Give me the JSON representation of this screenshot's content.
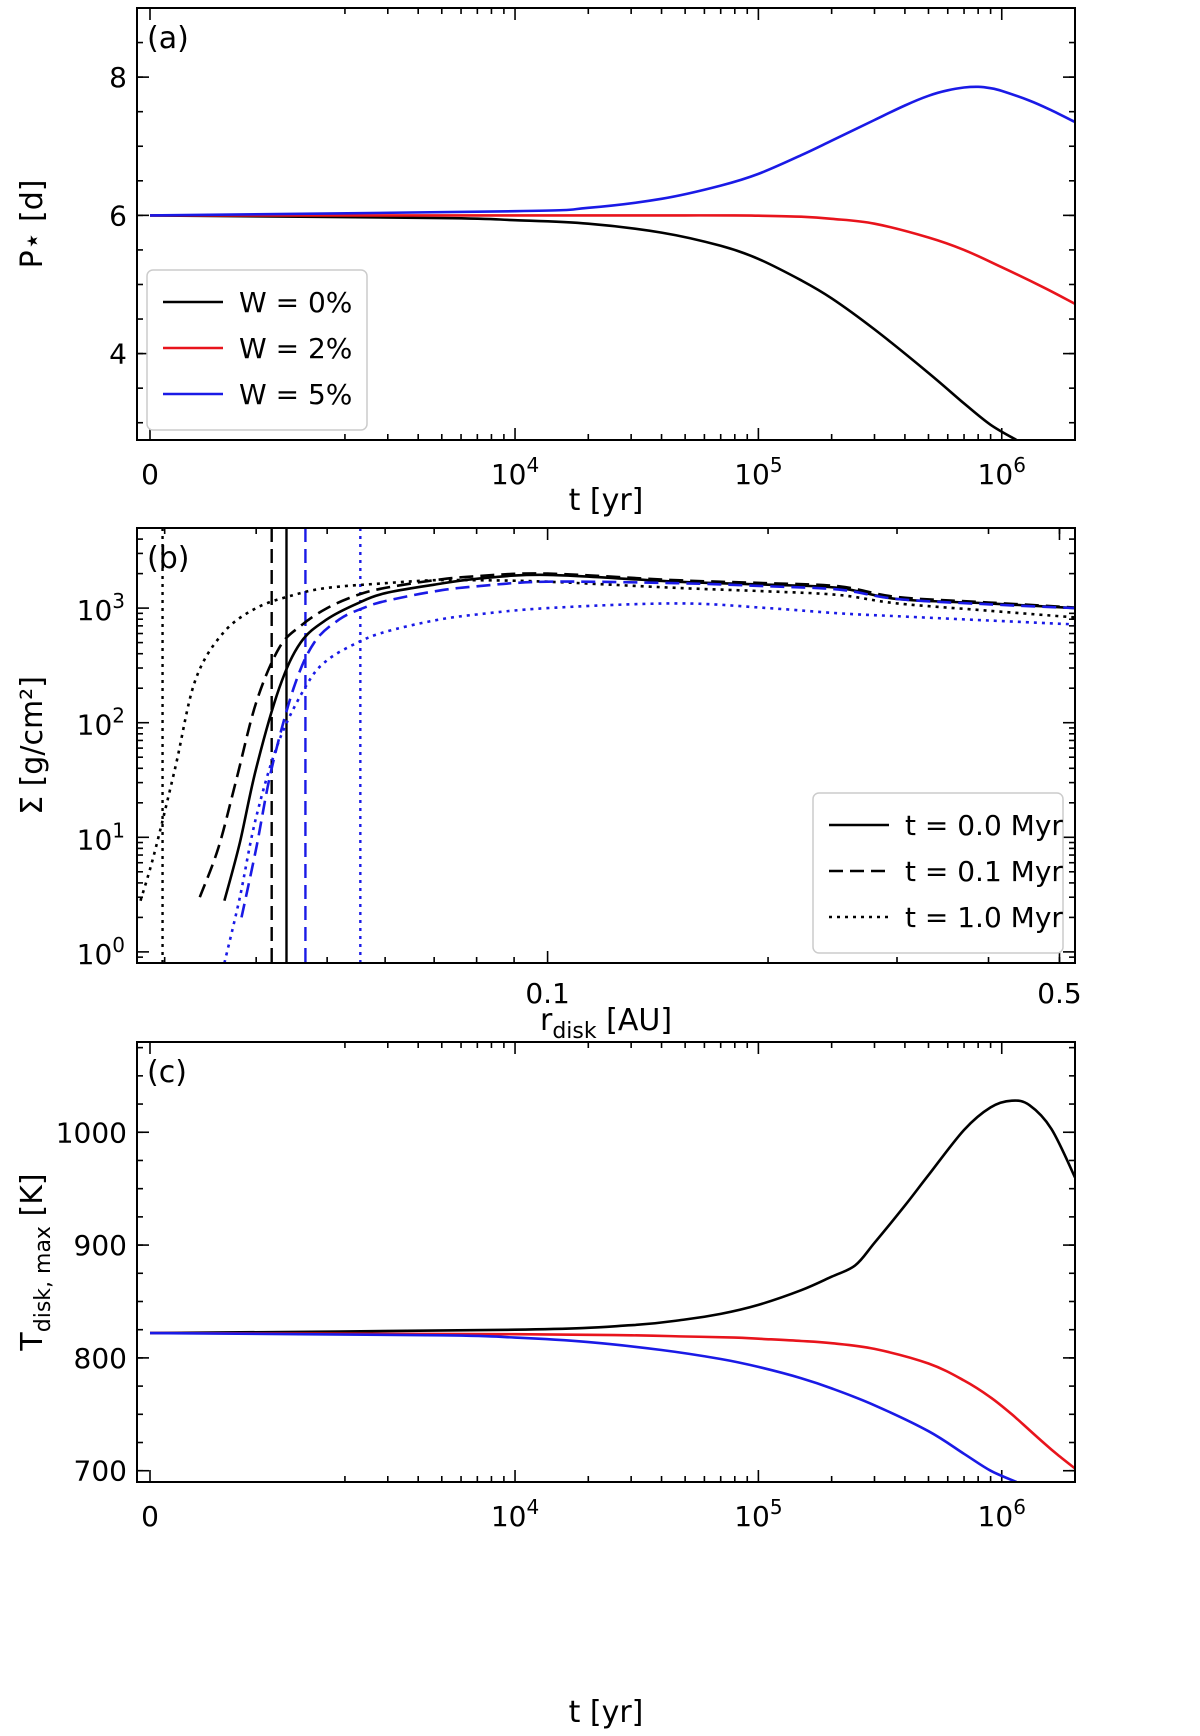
{
  "colors": {
    "black": "#000000",
    "red": "#e8141c",
    "blue": "#1a1ae6"
  },
  "chart_data": [
    {
      "panel": "(a)",
      "type": "line",
      "xscale": "symlog",
      "xlabel": "t [yr]",
      "ylabel": "P⋆ [d]",
      "xlim": [
        0,
        2000000
      ],
      "ylim": [
        2.75,
        9.0
      ],
      "x_ticks_major": [
        {
          "v": 0,
          "b": "0",
          "e": ""
        },
        {
          "v": 10000,
          "b": "10",
          "e": "4"
        },
        {
          "v": 100000,
          "b": "10",
          "e": "5"
        },
        {
          "v": 1000000,
          "b": "10",
          "e": "6"
        }
      ],
      "y_ticks_major": [
        4,
        6,
        8
      ],
      "legend": {
        "position": "lower-left",
        "entries": [
          "W = 0%",
          "W = 2%",
          "W = 5%"
        ]
      },
      "series": [
        {
          "name": "W = 0%",
          "color": "#000000",
          "style": "solid",
          "x": [
            0,
            5000,
            10000,
            20000,
            40000,
            70000,
            100000,
            150000,
            200000,
            300000,
            500000,
            700000,
            900000,
            1150000
          ],
          "y": [
            6.0,
            5.96,
            5.93,
            5.88,
            5.75,
            5.56,
            5.37,
            5.06,
            4.8,
            4.35,
            3.72,
            3.28,
            2.97,
            2.75
          ]
        },
        {
          "name": "W = 2%",
          "color": "#e8141c",
          "style": "solid",
          "x": [
            0,
            10000,
            30000,
            50000,
            80000,
            100000,
            150000,
            200000,
            300000,
            500000,
            700000,
            1000000,
            1500000,
            2000000
          ],
          "y": [
            6.0,
            6.0,
            6.0,
            6.0,
            6.0,
            5.995,
            5.98,
            5.95,
            5.88,
            5.68,
            5.5,
            5.25,
            4.95,
            4.72
          ]
        },
        {
          "name": "W = 5%",
          "color": "#1a1ae6",
          "style": "solid",
          "x": [
            0,
            10000,
            20000,
            40000,
            70000,
            100000,
            150000,
            200000,
            300000,
            400000,
            500000,
            600000,
            700000,
            800000,
            900000,
            1000000,
            1300000,
            1600000,
            2000000
          ],
          "y": [
            6.0,
            6.06,
            6.11,
            6.24,
            6.43,
            6.6,
            6.87,
            7.08,
            7.38,
            7.59,
            7.73,
            7.81,
            7.85,
            7.86,
            7.84,
            7.8,
            7.66,
            7.52,
            7.35
          ]
        }
      ]
    },
    {
      "panel": "(b)",
      "type": "line",
      "xscale": "log",
      "yscale": "log",
      "xlabel": "r_disk [AU]",
      "ylabel": "Σ [g/cm²]",
      "xlim": [
        0.0275,
        0.525
      ],
      "ylim": [
        0.8,
        5000
      ],
      "x_ticks_major": [
        {
          "v": 0.1,
          "label": "0.1"
        },
        {
          "v": 0.5,
          "label": "0.5"
        }
      ],
      "y_ticks_major": [
        {
          "v": 1,
          "b": "10",
          "e": "0"
        },
        {
          "v": 10,
          "b": "10",
          "e": "1"
        },
        {
          "v": 100,
          "b": "10",
          "e": "2"
        },
        {
          "v": 1000,
          "b": "10",
          "e": "3"
        }
      ],
      "legend": {
        "position": "lower-right",
        "entries": [
          "t = 0.0 Myr",
          "t = 0.1 Myr",
          "t = 1.0 Myr"
        ]
      },
      "series": [
        {
          "name": "t = 0.0 Myr",
          "color": "#000000",
          "style": "solid",
          "x": [
            0.0362,
            0.038,
            0.04,
            0.043,
            0.046,
            0.05,
            0.055,
            0.06,
            0.07,
            0.08,
            0.1,
            0.15,
            0.2,
            0.25,
            0.3,
            0.4,
            0.525
          ],
          "y": [
            2.8,
            9,
            40,
            200,
            500,
            800,
            1100,
            1350,
            1600,
            1800,
            1950,
            1700,
            1600,
            1500,
            1200,
            1100,
            1000
          ]
        },
        {
          "name": "t = 0.1 Myr",
          "color": "#000000",
          "style": "dashed",
          "x": [
            0.0335,
            0.0355,
            0.0375,
            0.04,
            0.043,
            0.046,
            0.05,
            0.055,
            0.06,
            0.07,
            0.08,
            0.1,
            0.15,
            0.2,
            0.25,
            0.3,
            0.4,
            0.525
          ],
          "y": [
            3.0,
            8,
            30,
            150,
            450,
            700,
            1000,
            1300,
            1500,
            1750,
            1900,
            2000,
            1750,
            1650,
            1550,
            1250,
            1120,
            1010
          ]
        },
        {
          "name": "t = 1.0 Myr",
          "color": "#000000",
          "style": "dotted",
          "x": [
            0.0278,
            0.029,
            0.031,
            0.033,
            0.036,
            0.04,
            0.045,
            0.05,
            0.06,
            0.07,
            0.08,
            0.1,
            0.15,
            0.2,
            0.25,
            0.3,
            0.4,
            0.525
          ],
          "y": [
            2.8,
            7,
            40,
            230,
            600,
            1000,
            1300,
            1500,
            1650,
            1750,
            1750,
            1700,
            1500,
            1400,
            1300,
            1100,
            950,
            830
          ]
        },
        {
          "name": "",
          "color": "#1a1ae6",
          "style": "dashed",
          "x": [
            0.0382,
            0.04,
            0.042,
            0.045,
            0.048,
            0.052,
            0.056,
            0.06,
            0.07,
            0.08,
            0.1,
            0.15,
            0.2,
            0.25,
            0.3,
            0.4,
            0.525
          ],
          "y": [
            2.0,
            8,
            40,
            200,
            500,
            800,
            1000,
            1150,
            1400,
            1550,
            1700,
            1650,
            1550,
            1450,
            1200,
            1080,
            1000
          ]
        },
        {
          "name": "",
          "color": "#1a1ae6",
          "style": "dotted",
          "x": [
            0.0362,
            0.038,
            0.04,
            0.043,
            0.047,
            0.05,
            0.055,
            0.06,
            0.07,
            0.08,
            0.1,
            0.15,
            0.2,
            0.25,
            0.3,
            0.4,
            0.525
          ],
          "y": [
            0.8,
            3,
            15,
            70,
            220,
            350,
            500,
            620,
            780,
            880,
            1000,
            1100,
            1000,
            900,
            850,
            780,
            720
          ]
        }
      ],
      "vlines": [
        {
          "x": 0.0298,
          "color": "#000000",
          "style": "dotted"
        },
        {
          "x": 0.042,
          "color": "#000000",
          "style": "dashed"
        },
        {
          "x": 0.044,
          "color": "#000000",
          "style": "solid"
        },
        {
          "x": 0.0467,
          "color": "#1a1ae6",
          "style": "dashed"
        },
        {
          "x": 0.0555,
          "color": "#1a1ae6",
          "style": "dotted"
        }
      ]
    },
    {
      "panel": "(c)",
      "type": "line",
      "xscale": "symlog",
      "xlabel": "t [yr]",
      "ylabel": "T_disk, max [K]",
      "xlim": [
        0,
        2000000
      ],
      "ylim": [
        690,
        1080
      ],
      "x_ticks_major": [
        {
          "v": 0,
          "b": "0",
          "e": ""
        },
        {
          "v": 10000,
          "b": "10",
          "e": "4"
        },
        {
          "v": 100000,
          "b": "10",
          "e": "5"
        },
        {
          "v": 1000000,
          "b": "10",
          "e": "6"
        }
      ],
      "y_ticks_major": [
        700,
        800,
        900,
        1000
      ],
      "series": [
        {
          "name": "",
          "color": "#000000",
          "style": "solid",
          "x": [
            0,
            10000,
            30000,
            50000,
            70000,
            100000,
            150000,
            200000,
            250000,
            300000,
            400000,
            500000,
            700000,
            900000,
            1100000,
            1300000,
            1600000,
            2000000
          ],
          "y": [
            822,
            825,
            829,
            834,
            839,
            847,
            860,
            872,
            882,
            902,
            935,
            962,
            1002,
            1022,
            1028,
            1024,
            1003,
            960
          ]
        },
        {
          "name": "",
          "color": "#e8141c",
          "style": "solid",
          "x": [
            0,
            10000,
            30000,
            50000,
            80000,
            100000,
            150000,
            200000,
            300000,
            500000,
            700000,
            900000,
            1100000,
            1300000,
            1500000,
            1700000,
            2000000
          ],
          "y": [
            822,
            821,
            820,
            819,
            818,
            817,
            815,
            813,
            808,
            795,
            780,
            765,
            750,
            736,
            724,
            714,
            702
          ]
        },
        {
          "name": "",
          "color": "#1a1ae6",
          "style": "solid",
          "x": [
            0,
            5000,
            10000,
            20000,
            40000,
            70000,
            100000,
            150000,
            200000,
            300000,
            500000,
            700000,
            900000,
            1150000
          ],
          "y": [
            822,
            820,
            818,
            814,
            807,
            799,
            792,
            782,
            773,
            758,
            735,
            715,
            700,
            690
          ]
        }
      ]
    }
  ]
}
